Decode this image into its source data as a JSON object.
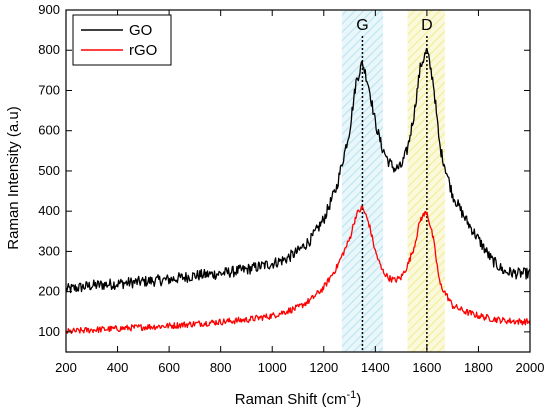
{
  "chart_data": {
    "type": "line",
    "xlabel_main": "Raman Shift (cm",
    "xlabel_sup": "-1",
    "xlabel_close": ")",
    "ylabel": "Raman Intensity (a.u)",
    "xlim": [
      200,
      2000
    ],
    "ylim": [
      50,
      900
    ],
    "xticks": [
      200,
      400,
      600,
      800,
      1000,
      1200,
      1400,
      1600,
      1800,
      2000
    ],
    "yticks": [
      100,
      200,
      300,
      400,
      500,
      600,
      700,
      800,
      900
    ],
    "grid": false,
    "legend_position": "top-left",
    "bands": [
      {
        "label": "G",
        "center": 1350,
        "from": 1270,
        "to": 1430,
        "color": "#bfe6f2"
      },
      {
        "label": "D",
        "center": 1600,
        "from": 1525,
        "to": 1670,
        "color": "#f3ee9a"
      }
    ],
    "series": [
      {
        "name": "GO",
        "color": "#000000",
        "x": [
          200,
          300,
          400,
          500,
          600,
          700,
          800,
          900,
          1000,
          1050,
          1100,
          1150,
          1200,
          1250,
          1300,
          1325,
          1350,
          1375,
          1400,
          1425,
          1450,
          1475,
          1500,
          1525,
          1550,
          1575,
          1600,
          1625,
          1650,
          1700,
          1750,
          1800,
          1850,
          1900,
          1950,
          2000
        ],
        "values": [
          205,
          215,
          220,
          225,
          230,
          240,
          245,
          255,
          270,
          280,
          300,
          330,
          380,
          460,
          600,
          720,
          770,
          710,
          620,
          560,
          525,
          505,
          510,
          555,
          640,
          760,
          800,
          720,
          560,
          440,
          380,
          330,
          280,
          250,
          245,
          245
        ]
      },
      {
        "name": "rGO",
        "color": "#ff0000",
        "x": [
          200,
          300,
          400,
          500,
          600,
          700,
          800,
          900,
          1000,
          1050,
          1100,
          1150,
          1200,
          1250,
          1300,
          1325,
          1350,
          1375,
          1400,
          1425,
          1450,
          1475,
          1500,
          1525,
          1550,
          1575,
          1600,
          1625,
          1650,
          1700,
          1750,
          1800,
          1850,
          1900,
          1950,
          2000
        ],
        "values": [
          100,
          105,
          108,
          112,
          115,
          120,
          125,
          130,
          140,
          150,
          160,
          180,
          210,
          260,
          330,
          390,
          410,
          370,
          300,
          255,
          235,
          228,
          235,
          265,
          310,
          380,
          400,
          330,
          220,
          165,
          150,
          140,
          133,
          128,
          126,
          125
        ]
      }
    ]
  }
}
